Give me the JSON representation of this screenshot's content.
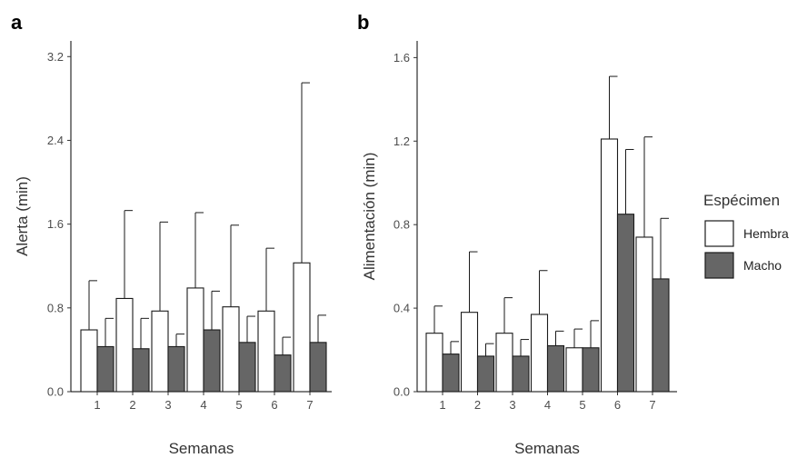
{
  "chart_data": [
    {
      "type": "bar",
      "panel_label": "a",
      "xlabel": "Semanas",
      "ylabel": "Alerta (min)",
      "categories": [
        "1",
        "2",
        "3",
        "4",
        "5",
        "6",
        "7"
      ],
      "ylim": [
        0,
        3.35
      ],
      "yticks": [
        0.0,
        0.8,
        1.6,
        2.4,
        3.2
      ],
      "ytick_labels": [
        "0.0",
        "0.8",
        "1.6",
        "2.4",
        "3.2"
      ],
      "grid": false,
      "series": [
        {
          "name": "Hembra",
          "values": [
            0.59,
            0.89,
            0.77,
            0.99,
            0.81,
            0.77,
            1.23
          ],
          "err_upper": [
            1.06,
            1.73,
            1.62,
            1.71,
            1.59,
            1.37,
            2.95
          ]
        },
        {
          "name": "Macho",
          "values": [
            0.43,
            0.41,
            0.43,
            0.59,
            0.47,
            0.35,
            0.47
          ],
          "err_upper": [
            0.7,
            0.7,
            0.55,
            0.96,
            0.72,
            0.52,
            0.73
          ]
        }
      ]
    },
    {
      "type": "bar",
      "panel_label": "b",
      "xlabel": "Semanas",
      "ylabel": "Alimentación (min)",
      "categories": [
        "1",
        "2",
        "3",
        "4",
        "5",
        "6",
        "7"
      ],
      "ylim": [
        0,
        1.68
      ],
      "yticks": [
        0.0,
        0.4,
        0.8,
        1.2,
        1.6
      ],
      "ytick_labels": [
        "0.0",
        "0.4",
        "0.8",
        "1.2",
        "1.6"
      ],
      "grid": false,
      "series": [
        {
          "name": "Hembra",
          "values": [
            0.28,
            0.38,
            0.28,
            0.37,
            0.21,
            1.21,
            0.74
          ],
          "err_upper": [
            0.41,
            0.67,
            0.45,
            0.58,
            0.3,
            1.51,
            1.22
          ]
        },
        {
          "name": "Macho",
          "values": [
            0.18,
            0.17,
            0.17,
            0.22,
            0.21,
            0.85,
            0.54
          ],
          "err_upper": [
            0.24,
            0.23,
            0.25,
            0.29,
            0.34,
            1.16,
            0.83
          ]
        }
      ]
    }
  ],
  "legend": {
    "title": "Espécimen",
    "position": "right",
    "items": [
      {
        "label": "Hembra",
        "color": "#ffffff"
      },
      {
        "label": "Macho",
        "color": "#666666"
      }
    ]
  },
  "colors": {
    "Hembra": "#ffffff",
    "Macho": "#666666",
    "outline": "#1a1a1a"
  }
}
